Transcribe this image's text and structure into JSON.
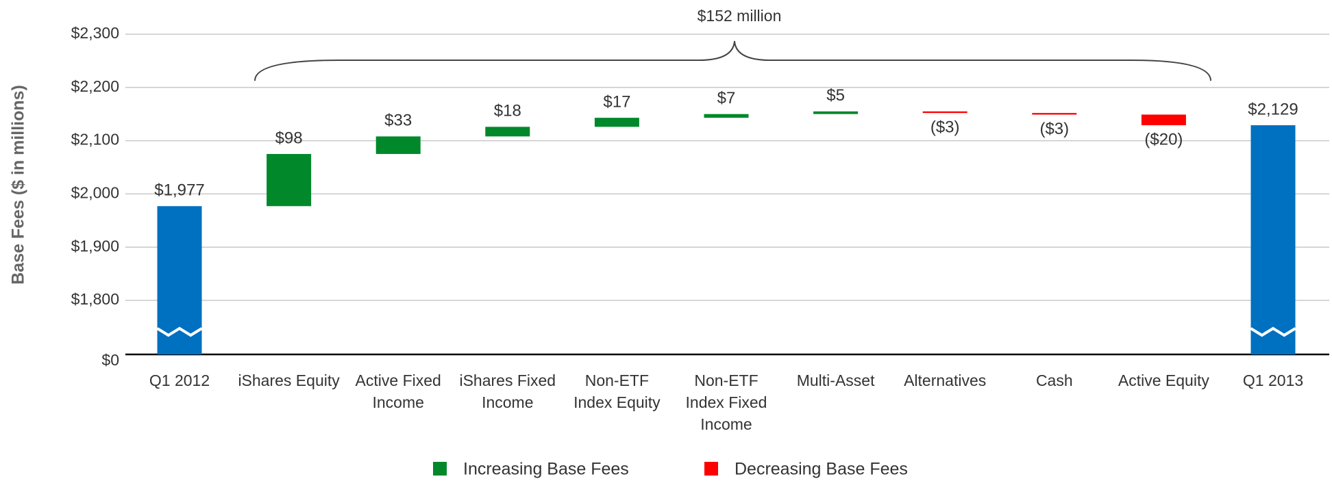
{
  "chart_data": {
    "type": "waterfall",
    "annotation": "$152 million",
    "ylabel": "Base Fees ($ in millions)",
    "categories": [
      "Q1 2012",
      "iShares Equity",
      "Active Fixed Income",
      "iShares Fixed Income",
      "Non-ETF Index Equity",
      "Non-ETF Index Fixed Income",
      "Multi-Asset",
      "Alternatives",
      "Cash",
      "Active Equity",
      "Q1 2013"
    ],
    "values": [
      1977,
      98,
      33,
      18,
      17,
      7,
      5,
      -3,
      -3,
      -20,
      2129
    ],
    "value_labels": [
      "$1,977",
      "$98",
      "$33",
      "$18",
      "$17",
      "$7",
      "$5",
      "($3)",
      "($3)",
      "($20)",
      "$2,129"
    ],
    "total_color": "#0070c0",
    "legend": [
      {
        "name": "Increasing Base Fees",
        "color": "#00882b"
      },
      {
        "name": "Decreasing Base Fees",
        "color": "#ff0000"
      }
    ],
    "ylim": [
      0,
      2300
    ],
    "axis_break": [
      0,
      1800
    ],
    "yticks": [
      {
        "value": 0,
        "label": "$0"
      },
      {
        "value": 1800,
        "label": "$1,800"
      },
      {
        "value": 1900,
        "label": "$1,900"
      },
      {
        "value": 2000,
        "label": "$2,000"
      },
      {
        "value": 2100,
        "label": "$2,100"
      },
      {
        "value": 2200,
        "label": "$2,200"
      },
      {
        "value": 2300,
        "label": "$2,300"
      }
    ],
    "grid": true
  }
}
